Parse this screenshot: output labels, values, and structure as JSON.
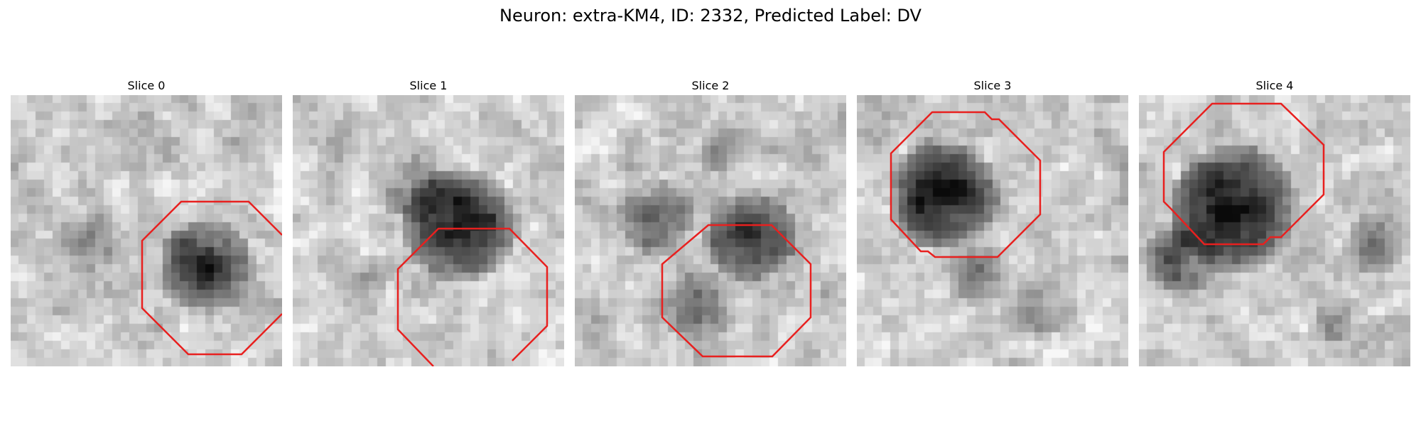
{
  "figure": {
    "title": "Neuron: extra-KM4, ID: 2332, Predicted Label: DV"
  },
  "slices": [
    {
      "label": "Slice 0",
      "icon": "grayscale-microscopy-patch",
      "outline_color": "#e8201f"
    },
    {
      "label": "Slice 1",
      "icon": "grayscale-microscopy-patch",
      "outline_color": "#e8201f"
    },
    {
      "label": "Slice 2",
      "icon": "grayscale-microscopy-patch",
      "outline_color": "#e8201f"
    },
    {
      "label": "Slice 3",
      "icon": "grayscale-microscopy-patch",
      "outline_color": "#e8201f"
    },
    {
      "label": "Slice 4",
      "icon": "grayscale-microscopy-patch",
      "outline_color": "#e8201f"
    }
  ]
}
